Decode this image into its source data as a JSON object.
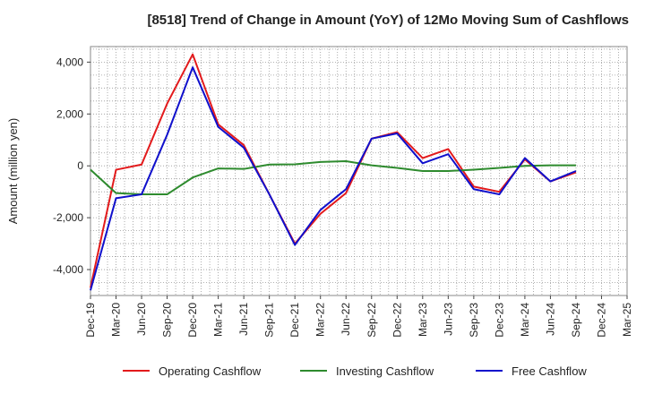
{
  "chart_data": {
    "type": "line",
    "title": "[8518]  Trend of Change in Amount (YoY) of 12Mo Moving Sum of Cashflows",
    "xlabel": "",
    "ylabel": "Amount (million yen)",
    "ylim": [
      -5000,
      4600
    ],
    "yticks": [
      4000,
      2000,
      0,
      -2000,
      -4000
    ],
    "ytick_labels": [
      "4,000",
      "2,000",
      "0",
      "-2,000",
      "-4,000"
    ],
    "grid": true,
    "legend": "bottom",
    "categories": [
      "Dec-19",
      "Mar-20",
      "Jun-20",
      "Sep-20",
      "Dec-20",
      "Mar-21",
      "Jun-21",
      "Sep-21",
      "Dec-21",
      "Mar-22",
      "Jun-22",
      "Sep-22",
      "Dec-22",
      "Mar-23",
      "Jun-23",
      "Sep-23",
      "Dec-23",
      "Mar-24",
      "Jun-24",
      "Sep-24",
      "Dec-24",
      "Mar-25"
    ],
    "tick_labels": [
      "Dec-19",
      "Mar-20",
      "Jun-20",
      "Sep-20",
      "Dec-20",
      "Mar-21",
      "Jun-21",
      "Sep-21",
      "Dec-21",
      "Mar-22",
      "Jun-22",
      "Sep-22",
      "Dec-22",
      "Mar-23",
      "Jun-23",
      "Sep-23",
      "Dec-23",
      "Mar-24",
      "Jun-24",
      "Sep-24",
      "Dec-24",
      "Mar-25"
    ],
    "series": [
      {
        "name": "Operating Cashflow",
        "color": "#e31a1c",
        "values": [
          -4700,
          -150,
          50,
          2400,
          4300,
          1600,
          800,
          -1100,
          -3000,
          -1850,
          -1050,
          1050,
          1300,
          300,
          650,
          -800,
          -1000,
          250,
          -600,
          -250,
          null,
          null
        ]
      },
      {
        "name": "Investing Cashflow",
        "color": "#2e8b2e",
        "values": [
          -150,
          -1050,
          -1100,
          -1100,
          -450,
          -100,
          -120,
          50,
          60,
          150,
          180,
          20,
          -80,
          -200,
          -200,
          -150,
          -80,
          0,
          20,
          20,
          null,
          null
        ]
      },
      {
        "name": "Free Cashflow",
        "color": "#1010cc",
        "values": [
          -4800,
          -1250,
          -1100,
          1200,
          3800,
          1500,
          700,
          -1100,
          -3050,
          -1700,
          -900,
          1050,
          1250,
          100,
          450,
          -900,
          -1100,
          300,
          -600,
          -200,
          null,
          null
        ]
      }
    ]
  }
}
